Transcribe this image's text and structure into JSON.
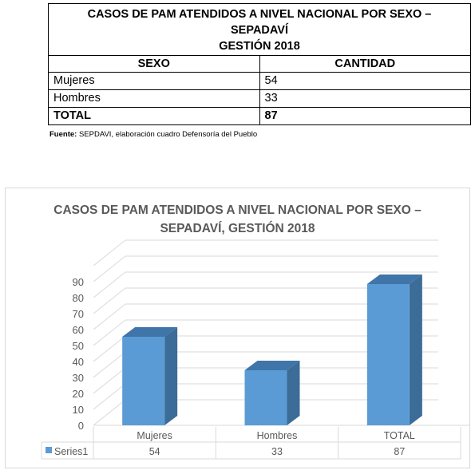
{
  "table": {
    "title_lines": [
      "CASOS DE PAM ATENDIDOS A NIVEL NACIONAL POR SEXO –",
      "SEPADAVÍ",
      "GESTIÓN 2018"
    ],
    "columns": [
      "SEXO",
      "CANTIDAD"
    ],
    "rows": [
      {
        "label": "Mujeres",
        "value": "54"
      },
      {
        "label": "Hombres",
        "value": "33"
      }
    ],
    "total": {
      "label": "TOTAL",
      "value": "87"
    }
  },
  "source": {
    "prefix": "Fuente:",
    "text": " SEPDAVI, elaboración cuadro Defensoría del Pueblo"
  },
  "chart_data": {
    "type": "bar",
    "title_lines": [
      "CASOS DE PAM ATENDIDOS A NIVEL NACIONAL POR SEXO –",
      "SEPADAVÍ, GESTIÓN 2018"
    ],
    "categories": [
      "Mujeres",
      "Hombres",
      "TOTAL"
    ],
    "series": [
      {
        "name": "Series1",
        "values": [
          54,
          33,
          87
        ],
        "labels": [
          "54",
          "33",
          "87"
        ]
      }
    ],
    "y_ticks": [
      "0",
      "10",
      "20",
      "30",
      "40",
      "50",
      "60",
      "70",
      "80",
      "90"
    ],
    "ylim": [
      0,
      90
    ],
    "grid": true,
    "three_d": true,
    "data_table": true,
    "colors": {
      "bar_front": "#5b9bd5",
      "bar_side": "#3c6c98",
      "bar_top": "#3f75a8",
      "grid": "#d9d9d9",
      "text": "#595959"
    }
  }
}
